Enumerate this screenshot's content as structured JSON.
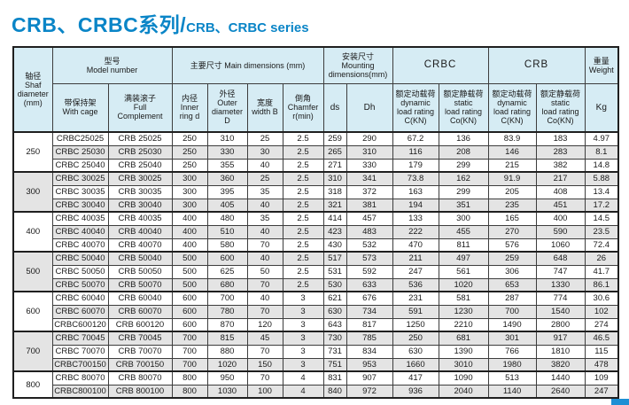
{
  "colors": {
    "accent_blue": "#0a85c7",
    "header_bg": "#d6ecf4",
    "row_shade": "#e4e4e4",
    "corner_strip": "#1e8fd4"
  },
  "title": {
    "cn": "CRB、CRBC系列/",
    "en": "CRB、CRBC series"
  },
  "header": {
    "shaft": "轴径\nShaf\ndiameter\n(mm)",
    "model": "型号\nModel number",
    "with_cage": "带保持架\nWith cage",
    "full_complement": "满装滚子\nFull\nComplement",
    "main_dims": "主要尺寸 Main dimensions (mm)",
    "inner": "内径\nInner\nring d",
    "outer": "外径\nOuter\ndiameter\nD",
    "width": "宽度\nwidth B",
    "chamfer": "倒角\nChamfer\nr(min)",
    "mounting": "安装尺寸\nMounting\ndimensions(mm)",
    "ds": "ds",
    "dh": "Dh",
    "crbc": "CRBC",
    "crb": "CRB",
    "dynamic": "额定动载荷\ndynamic\nload rating\nC(KN)",
    "static": "额定静载荷\nstatic\nload rating\nCo(KN)",
    "weight": "重量\nWeight",
    "kg": "Kg"
  },
  "table": {
    "groups": [
      {
        "diameter": "250",
        "rows": [
          [
            "CRBC25025",
            "CRB 25025",
            "250",
            "310",
            "25",
            "2.5",
            "259",
            "290",
            "67.2",
            "136",
            "83.9",
            "183",
            "4.97"
          ],
          [
            "CRBC 25030",
            "CRB 25030",
            "250",
            "330",
            "30",
            "2.5",
            "265",
            "310",
            "116",
            "208",
            "146",
            "283",
            "8.1"
          ],
          [
            "CRBC 25040",
            "CRB 25040",
            "250",
            "355",
            "40",
            "2.5",
            "271",
            "330",
            "179",
            "299",
            "215",
            "382",
            "14.8"
          ]
        ]
      },
      {
        "diameter": "300",
        "rows": [
          [
            "CRBC 30025",
            "CRB 30025",
            "300",
            "360",
            "25",
            "2.5",
            "310",
            "341",
            "73.8",
            "162",
            "91.9",
            "217",
            "5.88"
          ],
          [
            "CRBC 30035",
            "CRB 30035",
            "300",
            "395",
            "35",
            "2.5",
            "318",
            "372",
            "163",
            "299",
            "205",
            "408",
            "13.4"
          ],
          [
            "CRBC 30040",
            "CRB 30040",
            "300",
            "405",
            "40",
            "2.5",
            "321",
            "381",
            "194",
            "351",
            "235",
            "451",
            "17.2"
          ]
        ]
      },
      {
        "diameter": "400",
        "rows": [
          [
            "CRBC 40035",
            "CRB 40035",
            "400",
            "480",
            "35",
            "2.5",
            "414",
            "457",
            "133",
            "300",
            "165",
            "400",
            "14.5"
          ],
          [
            "CRBC 40040",
            "CRB 40040",
            "400",
            "510",
            "40",
            "2.5",
            "423",
            "483",
            "222",
            "455",
            "270",
            "590",
            "23.5"
          ],
          [
            "CRBC 40070",
            "CRB 40070",
            "400",
            "580",
            "70",
            "2.5",
            "430",
            "532",
            "470",
            "811",
            "576",
            "1060",
            "72.4"
          ]
        ]
      },
      {
        "diameter": "500",
        "rows": [
          [
            "CRBC 50040",
            "CRB 50040",
            "500",
            "600",
            "40",
            "2.5",
            "517",
            "573",
            "211",
            "497",
            "259",
            "648",
            "26"
          ],
          [
            "CRBC 50050",
            "CRB 50050",
            "500",
            "625",
            "50",
            "2.5",
            "531",
            "592",
            "247",
            "561",
            "306",
            "747",
            "41.7"
          ],
          [
            "CRBC 50070",
            "CRB 50070",
            "500",
            "680",
            "70",
            "2.5",
            "530",
            "633",
            "536",
            "1020",
            "653",
            "1330",
            "86.1"
          ]
        ]
      },
      {
        "diameter": "600",
        "rows": [
          [
            "CRBC 60040",
            "CRB 60040",
            "600",
            "700",
            "40",
            "3",
            "621",
            "676",
            "231",
            "581",
            "287",
            "774",
            "30.6"
          ],
          [
            "CRBC 60070",
            "CRB 60070",
            "600",
            "780",
            "70",
            "3",
            "630",
            "734",
            "591",
            "1230",
            "700",
            "1540",
            "102"
          ],
          [
            "CRBC600120",
            "CRB 600120",
            "600",
            "870",
            "120",
            "3",
            "643",
            "817",
            "1250",
            "2210",
            "1490",
            "2800",
            "274"
          ]
        ]
      },
      {
        "diameter": "700",
        "rows": [
          [
            "CRBC 70045",
            "CRB 70045",
            "700",
            "815",
            "45",
            "3",
            "730",
            "785",
            "250",
            "681",
            "301",
            "917",
            "46.5"
          ],
          [
            "CRBC 70070",
            "CRB 70070",
            "700",
            "880",
            "70",
            "3",
            "731",
            "834",
            "630",
            "1390",
            "766",
            "1810",
            "115"
          ],
          [
            "CRBC700150",
            "CRB 700150",
            "700",
            "1020",
            "150",
            "3",
            "751",
            "953",
            "1660",
            "3010",
            "1980",
            "3820",
            "478"
          ]
        ]
      },
      {
        "diameter": "800",
        "rows": [
          [
            "CRBC 80070",
            "CRB 80070",
            "800",
            "950",
            "70",
            "4",
            "831",
            "907",
            "417",
            "1090",
            "513",
            "1440",
            "109"
          ],
          [
            "CRBC800100",
            "CRB 800100",
            "800",
            "1030",
            "100",
            "4",
            "840",
            "972",
            "936",
            "2040",
            "1140",
            "2640",
            "247"
          ]
        ]
      }
    ]
  }
}
